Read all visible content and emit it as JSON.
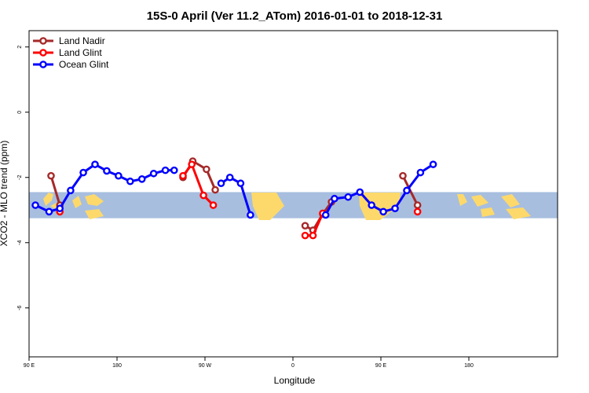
{
  "chart_data": {
    "type": "line",
    "title": "15S-0 April (Ver 11.2_ATom)   2016-01-01 to 2018-12-31",
    "xlabel": "Longitude",
    "ylabel": "XCO2 - MLO trend (ppm)",
    "xlim": [
      90,
      450
    ],
    "ylim": [
      -7.5,
      2.5
    ],
    "x_ticks": [
      {
        "value": 90,
        "label": "90 E"
      },
      {
        "value": 180,
        "label": "180"
      },
      {
        "value": 270,
        "label": "90 W"
      },
      {
        "value": 360,
        "label": "0"
      },
      {
        "value": 450,
        "label": "90 E"
      },
      {
        "value": 540,
        "label": "180"
      }
    ],
    "y_ticks": [
      {
        "value": 2,
        "label": "2"
      },
      {
        "value": 0,
        "label": "0"
      },
      {
        "value": -2,
        "label": "-2"
      },
      {
        "value": -4,
        "label": "-4"
      },
      {
        "value": -6,
        "label": "-6"
      }
    ],
    "grid": false,
    "legend_position": "top-left",
    "background_map": {
      "y_range": [
        -3.25,
        -2.45
      ],
      "ocean_color": "#a7bedf",
      "land_color": "#fdd96b"
    },
    "series": [
      {
        "name": "Land Nadir",
        "color": "#a52a2a",
        "segments": [
          [
            [
              112.5,
              -1.95
            ],
            [
              121.5,
              -2.85
            ]
          ],
          [
            [
              247.5,
              -2.0
            ],
            [
              257.5,
              -1.5
            ],
            [
              271.5,
              -1.75
            ],
            [
              280.5,
              -2.38
            ]
          ],
          [
            [
              372.5,
              -3.48
            ],
            [
              380.5,
              -3.62
            ],
            [
              390.5,
              -3.12
            ],
            [
              399.5,
              -2.75
            ]
          ],
          [
            [
              472.5,
              -1.95
            ],
            [
              487.5,
              -2.85
            ]
          ]
        ]
      },
      {
        "name": "Land Glint",
        "color": "#ff0000",
        "segments": [
          [
            [
              121.5,
              -3.05
            ]
          ],
          [
            [
              247.5,
              -1.95
            ],
            [
              256.5,
              -1.6
            ],
            [
              268.5,
              -2.55
            ],
            [
              278.5,
              -2.85
            ]
          ],
          [
            [
              372.5,
              -3.78
            ],
            [
              380.5,
              -3.78
            ],
            [
              390.5,
              -3.1
            ]
          ],
          [
            [
              487.5,
              -3.05
            ]
          ]
        ]
      },
      {
        "name": "Ocean Glint",
        "color": "#0000ff",
        "segments": [
          [
            [
              96.5,
              -2.85
            ],
            [
              110.5,
              -3.05
            ],
            [
              121.5,
              -2.95
            ],
            [
              132.5,
              -2.4
            ],
            [
              145.5,
              -1.85
            ],
            [
              157.5,
              -1.6
            ],
            [
              169.5,
              -1.8
            ],
            [
              181.5,
              -1.95
            ],
            [
              193.5,
              -2.12
            ],
            [
              205.5,
              -2.05
            ],
            [
              217.5,
              -1.88
            ],
            [
              229.5,
              -1.78
            ],
            [
              238.5,
              -1.78
            ]
          ],
          [
            [
              286.5,
              -2.18
            ],
            [
              295.5,
              -2.0
            ],
            [
              306.5,
              -2.18
            ],
            [
              316.5,
              -3.15
            ]
          ],
          [
            [
              393.5,
              -3.15
            ],
            [
              402.5,
              -2.65
            ],
            [
              416.5,
              -2.6
            ],
            [
              428.5,
              -2.45
            ],
            [
              440.5,
              -2.85
            ],
            [
              452.5,
              -3.05
            ],
            [
              464.5,
              -2.95
            ],
            [
              476.5,
              -2.4
            ],
            [
              490.5,
              -1.85
            ],
            [
              503.5,
              -1.6
            ]
          ]
        ]
      }
    ]
  }
}
